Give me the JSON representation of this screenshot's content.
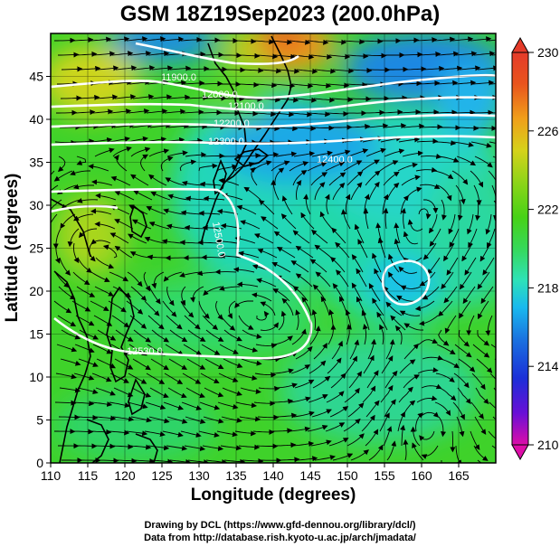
{
  "title": "GSM 18Z19Sep2023 (200.0hPa)",
  "map": {
    "xlabel": "Longitude (degrees)",
    "ylabel": "Latitude  (degrees)",
    "lon_range": [
      110,
      170
    ],
    "lat_range": [
      0,
      50
    ],
    "lon_ticks": [
      110,
      115,
      120,
      125,
      130,
      135,
      140,
      145,
      150,
      155,
      160,
      165
    ],
    "lat_ticks": [
      0,
      5,
      10,
      15,
      20,
      25,
      30,
      35,
      40,
      45
    ],
    "grid": true
  },
  "colorbar": {
    "ticks": [
      230,
      226,
      222,
      218,
      214,
      210
    ],
    "range": [
      210,
      230
    ],
    "colors": [
      "#dd0ea8",
      "#6a0fd6",
      "#1b2fd8",
      "#1a73e0",
      "#19b9ee",
      "#2ee2b8",
      "#36d85a",
      "#47d216",
      "#8ed419",
      "#d5d21a",
      "#f0a01a",
      "#e9541d",
      "#e43b2a"
    ]
  },
  "contour_labels": [
    {
      "text": "11900.0"
    },
    {
      "text": "12000.0"
    },
    {
      "text": "12100.0"
    },
    {
      "text": "12200.0"
    },
    {
      "text": "12300.0"
    },
    {
      "text": "12400.0"
    },
    {
      "text": "12500.0"
    },
    {
      "text": "12530.0"
    }
  ],
  "credits": {
    "line1": "Drawing by DCL (https://www.gfd-dennou.org/library/dcl/)",
    "line2": "Data from http://database.rish.kyoto-u.ac.jp/arch/jmadata/"
  }
}
